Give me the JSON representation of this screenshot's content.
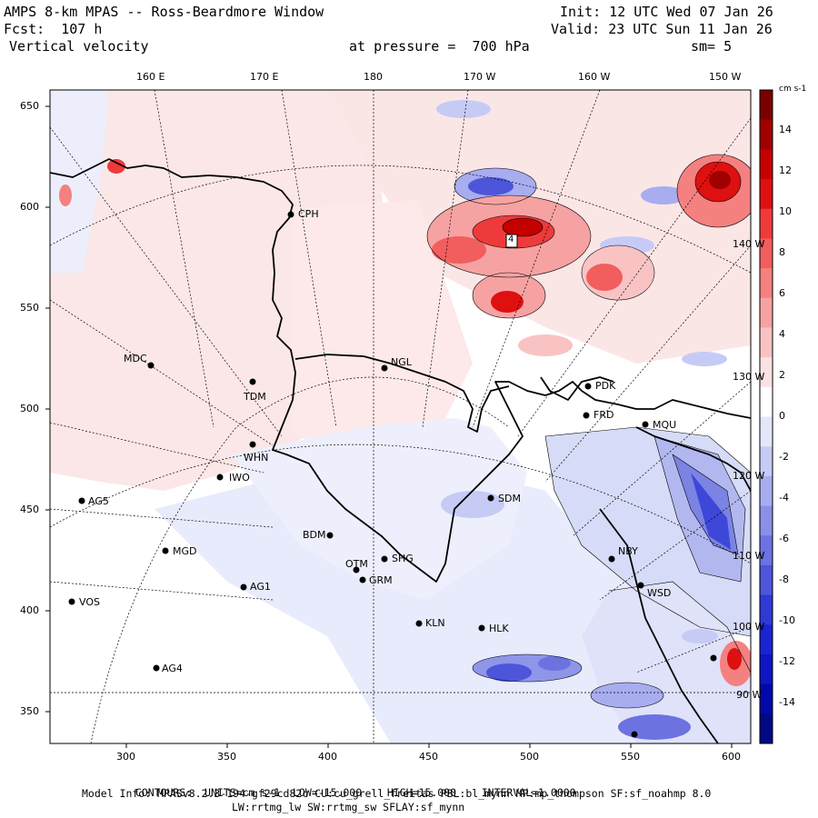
{
  "header": {
    "title": "AMPS 8-km MPAS -- Ross-Beardmore Window",
    "fcst": "Fcst:  107 h",
    "field": "Vertical velocity",
    "init": "Init: 12 UTC Wed 07 Jan 26",
    "valid": "Valid: 23 UTC Sun 11 Jan 26",
    "pressure": "at pressure =  700 hPa",
    "smooth": "sm= 5"
  },
  "top_longitudes": [
    "160 E",
    "170 E",
    "180",
    "170 W",
    "160 W",
    "150 W"
  ],
  "left_axis": [
    "650",
    "600",
    "550",
    "500",
    "450",
    "400",
    "350"
  ],
  "bottom_axis": [
    "300",
    "350",
    "400",
    "450",
    "500",
    "550",
    "600"
  ],
  "colorbar": {
    "units": "cm s-1",
    "labels": [
      "14",
      "12",
      "10",
      "8",
      "6",
      "4",
      "2",
      "0",
      "-2",
      "-4",
      "-6",
      "-8",
      "-10",
      "-12",
      "-14"
    ],
    "colors": [
      "#7a0000",
      "#a00000",
      "#c40000",
      "#de1010",
      "#ee3a3a",
      "#f25e5e",
      "#f58080",
      "#f7a2a2",
      "#f9c3c3",
      "#fce2e2",
      "#ffffff",
      "#e4e6fb",
      "#c6cbf6",
      "#a7adef",
      "#8a90e8",
      "#6c72e0",
      "#4d55da",
      "#2f39d5",
      "#1a24d0",
      "#0d16c2",
      "#0009a8",
      "#000884"
    ]
  },
  "internal_lon_labels": [
    "140 W",
    "130 W",
    "120 W",
    "110 W",
    "100 W",
    "90 W"
  ],
  "stations": [
    "CPH",
    "NGL",
    "MDC",
    "TDM",
    "WHN",
    "IWO",
    "AG5",
    "MGD",
    "BDM",
    "OTM",
    "GRM",
    "SHG",
    "AG1",
    "VOS",
    "AG4",
    "KLN",
    "HLK",
    "SDM",
    "PDK",
    "FRD",
    "MQU",
    "NBY",
    "WSD",
    "4"
  ],
  "footer": {
    "contours_label": "CONTOURS:",
    "units_label": "UNITS=cm s-1",
    "low_label": "LOW=",
    "low": "-15.000",
    "high_label": "HIGH=",
    "high": "15.000",
    "interval_label": "INTERVAL=",
    "interval": "1.0000",
    "model_info": "Model Info: MPASv8.2.3-194-gf29cd82c CU:cu_grell_freitas PBL:bl_mynn MP:mp_thompson SF:sf_noahmp 8.0",
    "model_info2": "LW:rrtmg_lw SW:rrtmg_sw SFLAY:sf_mynn"
  }
}
